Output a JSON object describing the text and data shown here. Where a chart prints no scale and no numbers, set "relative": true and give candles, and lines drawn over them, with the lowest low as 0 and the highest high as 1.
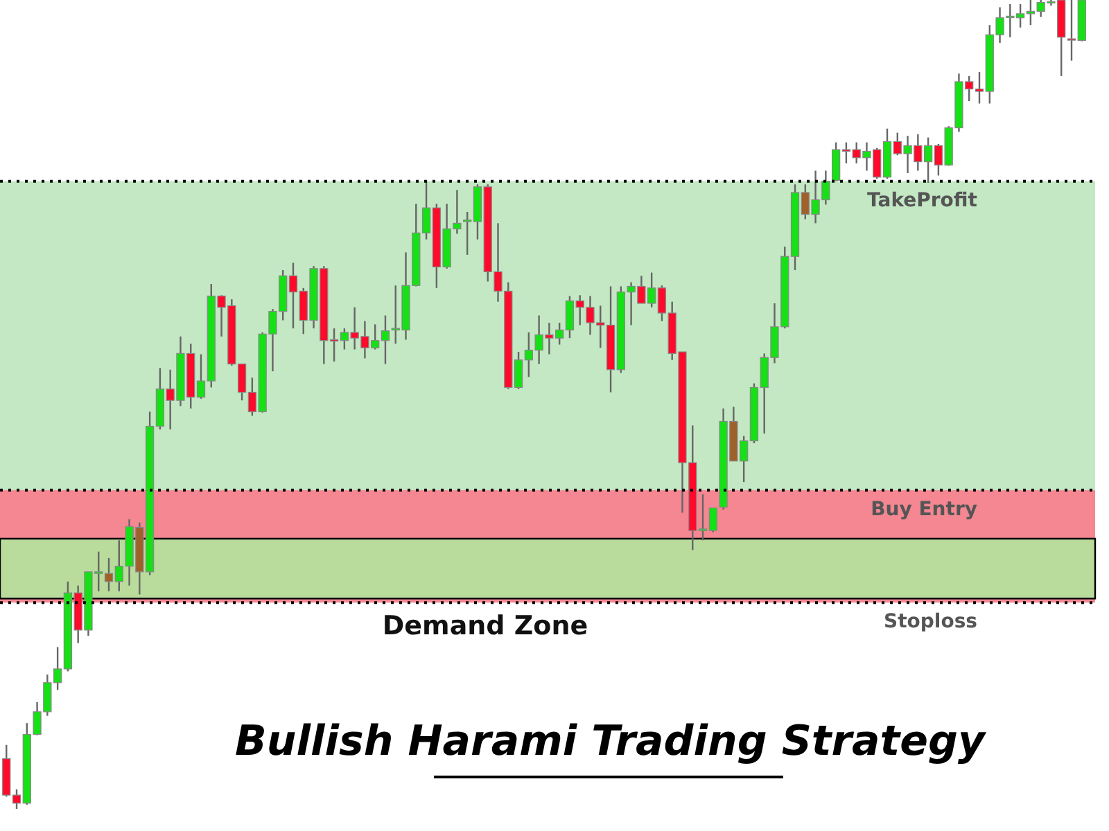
{
  "chart_data": {
    "type": "candlestick",
    "title": "Bullish Harami Trading Strategy",
    "relative": true,
    "grid": false,
    "categories": [
      null,
      null,
      null,
      null,
      null,
      null,
      null,
      null,
      null,
      null,
      null,
      null,
      null,
      null,
      null,
      null,
      null,
      null,
      null,
      null,
      null,
      null,
      null,
      null,
      null,
      null,
      null,
      null,
      null,
      null,
      null,
      null,
      null,
      null,
      null,
      null,
      null,
      null,
      null,
      null,
      null,
      null,
      null,
      null,
      null,
      null,
      null,
      null,
      null,
      null,
      null,
      null,
      null,
      null,
      null,
      null,
      null,
      null,
      null,
      null,
      null,
      null,
      null,
      null,
      null,
      null,
      null,
      null,
      null,
      null,
      null,
      null,
      null,
      null,
      null,
      null,
      null,
      null,
      null,
      null,
      null,
      null,
      null,
      null,
      null,
      null,
      null,
      null,
      null,
      null,
      null,
      null,
      null,
      null,
      null,
      null,
      null,
      null,
      null,
      null,
      null,
      null,
      null,
      null,
      null,
      null
    ],
    "ohlc": [
      [
        0.062,
        0.079,
        0.015,
        0.017
      ],
      [
        0.017,
        0.024,
        0,
        0.007
      ],
      [
        0.007,
        0.106,
        0.005,
        0.092
      ],
      [
        0.092,
        0.132,
        0.091,
        0.12
      ],
      [
        0.12,
        0.166,
        0.115,
        0.156
      ],
      [
        0.156,
        0.2,
        0.147,
        0.173
      ],
      [
        0.173,
        0.281,
        0.17,
        0.267
      ],
      [
        0.267,
        0.276,
        0.205,
        0.221
      ],
      [
        0.221,
        0.293,
        0.214,
        0.293
      ],
      [
        0.293,
        0.318,
        0.269,
        0.291
      ],
      [
        0.291,
        0.31,
        0.269,
        0.281
      ],
      [
        0.281,
        0.332,
        0.269,
        0.3
      ],
      [
        0.3,
        0.358,
        0.276,
        0.349
      ],
      [
        0.348,
        0.354,
        0.265,
        0.293
      ],
      [
        0.293,
        0.491,
        0.289,
        0.473
      ],
      [
        0.473,
        0.545,
        0.469,
        0.519
      ],
      [
        0.519,
        0.543,
        0.469,
        0.505
      ],
      [
        0.505,
        0.584,
        0.498,
        0.563
      ],
      [
        0.563,
        0.575,
        0.495,
        0.509
      ],
      [
        0.509,
        0.562,
        0.507,
        0.529
      ],
      [
        0.529,
        0.649,
        0.521,
        0.634
      ],
      [
        0.634,
        0.635,
        0.584,
        0.62
      ],
      [
        0.622,
        0.63,
        0.548,
        0.55
      ],
      [
        0.55,
        0.55,
        0.505,
        0.515
      ],
      [
        0.515,
        0.533,
        0.486,
        0.491
      ],
      [
        0.491,
        0.589,
        0.49,
        0.587
      ],
      [
        0.587,
        0.618,
        0.541,
        0.615
      ],
      [
        0.615,
        0.666,
        0.604,
        0.659
      ],
      [
        0.659,
        0.675,
        0.594,
        0.639
      ],
      [
        0.64,
        0.644,
        0.587,
        0.604
      ],
      [
        0.604,
        0.671,
        0.594,
        0.668
      ],
      [
        0.668,
        0.671,
        0.55,
        0.579
      ],
      [
        0.579,
        0.594,
        0.553,
        0.58
      ],
      [
        0.579,
        0.594,
        0.568,
        0.589
      ],
      [
        0.589,
        0.62,
        0.568,
        0.582
      ],
      [
        0.584,
        0.603,
        0.557,
        0.57
      ],
      [
        0.57,
        0.599,
        0.568,
        0.579
      ],
      [
        0.579,
        0.61,
        0.55,
        0.591
      ],
      [
        0.592,
        0.647,
        0.575,
        0.594
      ],
      [
        0.592,
        0.688,
        0.58,
        0.647
      ],
      [
        0.647,
        0.748,
        0.646,
        0.712
      ],
      [
        0.712,
        0.777,
        0.704,
        0.743
      ],
      [
        0.743,
        0.748,
        0.644,
        0.67
      ],
      [
        0.67,
        0.748,
        0.668,
        0.717
      ],
      [
        0.717,
        0.765,
        0.711,
        0.724
      ],
      [
        0.726,
        0.738,
        0.685,
        0.728
      ],
      [
        0.726,
        0.772,
        0.704,
        0.769
      ],
      [
        0.769,
        0.772,
        0.652,
        0.664
      ],
      [
        0.664,
        0.724,
        0.627,
        0.64
      ],
      [
        0.64,
        0.651,
        0.519,
        0.521
      ],
      [
        0.521,
        0.565,
        0.519,
        0.555
      ],
      [
        0.555,
        0.589,
        0.534,
        0.567
      ],
      [
        0.567,
        0.61,
        0.55,
        0.586
      ],
      [
        0.586,
        0.601,
        0.562,
        0.582
      ],
      [
        0.582,
        0.601,
        0.574,
        0.592
      ],
      [
        0.592,
        0.634,
        0.582,
        0.628
      ],
      [
        0.628,
        0.635,
        0.598,
        0.62
      ],
      [
        0.62,
        0.634,
        0.586,
        0.601
      ],
      [
        0.601,
        0.622,
        0.57,
        0.598
      ],
      [
        0.598,
        0.646,
        0.515,
        0.543
      ],
      [
        0.543,
        0.646,
        0.539,
        0.639
      ],
      [
        0.639,
        0.651,
        0.598,
        0.646
      ],
      [
        0.646,
        0.659,
        0.625,
        0.625
      ],
      [
        0.625,
        0.663,
        0.62,
        0.644
      ],
      [
        0.644,
        0.647,
        0.603,
        0.613
      ],
      [
        0.613,
        0.627,
        0.555,
        0.563
      ],
      [
        0.565,
        0.565,
        0.366,
        0.428
      ],
      [
        0.428,
        0.474,
        0.32,
        0.344
      ],
      [
        0.344,
        0.389,
        0.332,
        0.346
      ],
      [
        0.344,
        0.372,
        0.342,
        0.372
      ],
      [
        0.373,
        0.495,
        0.37,
        0.479
      ],
      [
        0.479,
        0.497,
        0.43,
        0.43
      ],
      [
        0.43,
        0.461,
        0.404,
        0.455
      ],
      [
        0.455,
        0.526,
        0.452,
        0.521
      ],
      [
        0.521,
        0.563,
        0.464,
        0.558
      ],
      [
        0.558,
        0.625,
        0.551,
        0.596
      ],
      [
        0.596,
        0.695,
        0.594,
        0.683
      ],
      [
        0.683,
        0.772,
        0.666,
        0.762
      ],
      [
        0.762,
        0.772,
        0.729,
        0.735
      ],
      [
        0.735,
        0.789,
        0.724,
        0.753
      ],
      [
        0.753,
        0.789,
        0.747,
        0.776
      ],
      [
        0.777,
        0.824,
        0.776,
        0.815
      ],
      [
        0.815,
        0.824,
        0.798,
        0.813
      ],
      [
        0.815,
        0.824,
        0.798,
        0.805
      ],
      [
        0.805,
        0.824,
        0.789,
        0.813
      ],
      [
        0.815,
        0.817,
        0.779,
        0.781
      ],
      [
        0.781,
        0.841,
        0.779,
        0.825
      ],
      [
        0.825,
        0.836,
        0.808,
        0.81
      ],
      [
        0.81,
        0.832,
        0.786,
        0.82
      ],
      [
        0.82,
        0.834,
        0.789,
        0.8
      ],
      [
        0.8,
        0.83,
        0.774,
        0.82
      ],
      [
        0.82,
        0.822,
        0.783,
        0.796
      ],
      [
        0.796,
        0.844,
        0.795,
        0.842
      ],
      [
        0.842,
        0.909,
        0.837,
        0.899
      ],
      [
        0.899,
        0.906,
        0.875,
        0.89
      ],
      [
        0.89,
        0.911,
        0.872,
        0.887
      ],
      [
        0.887,
        0.969,
        0.872,
        0.957
      ],
      [
        0.957,
        0.991,
        0.947,
        0.978
      ],
      [
        0.979,
        0.995,
        0.954,
        0.98
      ],
      [
        0.978,
        0.995,
        0.966,
        0.983
      ],
      [
        0.983,
        1,
        0.969,
        0.986
      ],
      [
        0.986,
        1,
        0.979,
        0.997
      ],
      [
        0.997,
        1,
        0.993,
        0.998
      ],
      [
        1,
        1,
        0.906,
        0.954
      ],
      [
        0.952,
        1,
        0.925,
        0.951
      ],
      [
        0.95,
        1,
        0.949,
        1
      ]
    ],
    "colors": [
      "#ff0a2a",
      "#ff0a2a",
      "#16e016",
      "#16e016",
      "#16e016",
      "#16e016",
      "#16e016",
      "#ff0a2a",
      "#16e016",
      "#16e016",
      "#a0602a",
      "#16e016",
      "#16e016",
      "#a0602a",
      "#16e016",
      "#16e016",
      "#ff0a2a",
      "#16e016",
      "#ff0a2a",
      "#16e016",
      "#16e016",
      "#ff0a2a",
      "#ff0a2a",
      "#ff0a2a",
      "#ff0a2a",
      "#16e016",
      "#16e016",
      "#16e016",
      "#ff0a2a",
      "#ff0a2a",
      "#16e016",
      "#ff0a2a",
      "#ff0a2a",
      "#16e016",
      "#ff0a2a",
      "#ff0a2a",
      "#16e016",
      "#16e016",
      "#16e016",
      "#16e016",
      "#16e016",
      "#16e016",
      "#ff0a2a",
      "#16e016",
      "#16e016",
      "#16e016",
      "#16e016",
      "#ff0a2a",
      "#ff0a2a",
      "#ff0a2a",
      "#16e016",
      "#16e016",
      "#16e016",
      "#ff0a2a",
      "#16e016",
      "#16e016",
      "#ff0a2a",
      "#ff0a2a",
      "#ff0a2a",
      "#ff0a2a",
      "#16e016",
      "#16e016",
      "#ff0a2a",
      "#16e016",
      "#ff0a2a",
      "#ff0a2a",
      "#ff0a2a",
      "#ff0a2a",
      "#16e016",
      "#16e016",
      "#16e016",
      "#a0602a",
      "#16e016",
      "#16e016",
      "#16e016",
      "#16e016",
      "#16e016",
      "#16e016",
      "#a0602a",
      "#16e016",
      "#16e016",
      "#16e016",
      "#ff0a2a",
      "#ff0a2a",
      "#16e016",
      "#ff0a2a",
      "#16e016",
      "#ff0a2a",
      "#16e016",
      "#ff0a2a",
      "#16e016",
      "#ff0a2a",
      "#16e016",
      "#16e016",
      "#ff0a2a",
      "#ff0a2a",
      "#16e016",
      "#16e016",
      "#16e016",
      "#16e016",
      "#16e016",
      "#16e016",
      "#16e016",
      "#ff0a2a",
      "#ff0a2a",
      "#16e016"
    ],
    "bands": [
      {
        "axis": "y",
        "from": 0.394,
        "to": 0.776,
        "color": "#b9e4b9"
      },
      {
        "axis": "y",
        "from": 0.255,
        "to": 0.394,
        "color": "#f2727e"
      },
      {
        "axis": "y",
        "from": 0.26,
        "to": 0.334,
        "label": "Demand Zone",
        "color": "#a6f7a0"
      }
    ],
    "ref_lines": [
      {
        "axis": "y",
        "value": 0.776,
        "label": "TakeProfit",
        "line_style": "dotted",
        "color": "#000000"
      },
      {
        "axis": "y",
        "value": 0.394,
        "label": "Buy Entry",
        "line_style": "dotted",
        "color": "#000000"
      },
      {
        "axis": "y",
        "value": 0.255,
        "label": "Stoploss",
        "line_style": "dotted",
        "color": "#000000"
      }
    ]
  }
}
